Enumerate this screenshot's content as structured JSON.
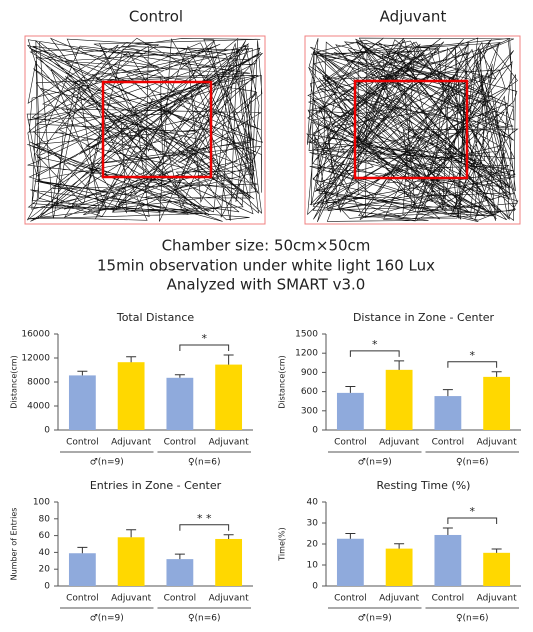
{
  "tracking": {
    "panels": [
      {
        "label": "Control"
      },
      {
        "label": "Adjuvant"
      }
    ],
    "caption": [
      "Chamber size: 50cm×50cm",
      "15min observation under white light 160 Lux",
      "Analyzed with SMART v3.0"
    ]
  },
  "chart_data": [
    {
      "type": "bar",
      "title": "Total Distance",
      "y_label": "Distance(cm)",
      "categories": [
        "Control",
        "Adjuvant",
        "Control",
        "Adjuvant"
      ],
      "groups": [
        "♂(n=9)",
        "♀(n=6)"
      ],
      "values": [
        9100,
        11300,
        8700,
        10900
      ],
      "errors": [
        700,
        900,
        500,
        1600
      ],
      "colors": [
        "#8faadc",
        "#ffd800",
        "#8faadc",
        "#ffd800"
      ],
      "ylim": [
        0,
        16000
      ],
      "yticks": [
        0,
        4000,
        8000,
        12000,
        16000
      ],
      "annotations": [
        {
          "text": "*",
          "between": [
            2,
            3
          ]
        }
      ]
    },
    {
      "type": "bar",
      "title": "Distance in Zone - Center",
      "y_label": "Distance(cm)",
      "categories": [
        "Control",
        "Adjuvant",
        "Control",
        "Adjuvant"
      ],
      "groups": [
        "♂(n=9)",
        "♀(n=6)"
      ],
      "values": [
        580,
        940,
        530,
        830
      ],
      "errors": [
        100,
        140,
        100,
        80
      ],
      "colors": [
        "#8faadc",
        "#ffd800",
        "#8faadc",
        "#ffd800"
      ],
      "ylim": [
        0,
        1500
      ],
      "yticks": [
        0,
        300,
        600,
        900,
        1200,
        1500
      ],
      "annotations": [
        {
          "text": "*",
          "between": [
            0,
            1
          ]
        },
        {
          "text": "*",
          "between": [
            2,
            3
          ]
        }
      ]
    },
    {
      "type": "bar",
      "title": "Entries in Zone - Center",
      "y_label": "Number of Entries",
      "categories": [
        "Control",
        "Adjuvant",
        "Control",
        "Adjuvant"
      ],
      "groups": [
        "♂(n=9)",
        "♀(n=6)"
      ],
      "values": [
        39,
        58,
        32,
        56
      ],
      "errors": [
        7,
        9,
        6,
        5
      ],
      "colors": [
        "#8faadc",
        "#ffd800",
        "#8faadc",
        "#ffd800"
      ],
      "ylim": [
        0,
        100
      ],
      "yticks": [
        0,
        20,
        40,
        60,
        80,
        100
      ],
      "annotations": [
        {
          "text": "* *",
          "between": [
            2,
            3
          ]
        }
      ]
    },
    {
      "type": "bar",
      "title": "Resting Time (%)",
      "y_label": "Time(%)",
      "categories": [
        "Control",
        "Adjuvant",
        "Control",
        "Adjuvant"
      ],
      "groups": [
        "♂(n=9)",
        "♀(n=6)"
      ],
      "values": [
        22.5,
        17.8,
        24.3,
        15.8
      ],
      "errors": [
        2.5,
        2.3,
        3.3,
        1.8
      ],
      "colors": [
        "#8faadc",
        "#ffd800",
        "#8faadc",
        "#ffd800"
      ],
      "ylim": [
        0,
        40
      ],
      "yticks": [
        0,
        10,
        20,
        30,
        40
      ],
      "annotations": [
        {
          "text": "*",
          "between": [
            2,
            3
          ]
        }
      ]
    }
  ]
}
